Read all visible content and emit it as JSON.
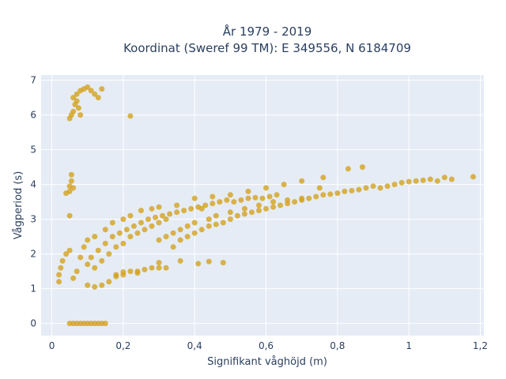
{
  "chart_data": {
    "type": "scatter",
    "title_lines": [
      "År 1979 - 2019",
      "Koordinat (Sweref 99 TM): E 349556, N 6184709"
    ],
    "xlabel": "Signifikant våghöjd (m)",
    "ylabel": "Vågperiod (s)",
    "xlim": [
      -0.03,
      1.21
    ],
    "ylim": [
      -0.35,
      7.15
    ],
    "x_ticks": [
      0,
      0.2,
      0.4,
      0.6,
      0.8,
      1.0,
      1.2
    ],
    "x_tick_labels": [
      "0",
      "0,2",
      "0,4",
      "0,6",
      "0,8",
      "1",
      "1,2"
    ],
    "y_ticks": [
      0,
      1,
      2,
      3,
      4,
      5,
      6,
      7
    ],
    "y_tick_labels": [
      "0",
      "1",
      "2",
      "3",
      "4",
      "5",
      "6",
      "7"
    ],
    "grid": true,
    "marker_color": "#D4A21E",
    "plot_background": "#E5ECF6",
    "series": [
      {
        "points": [
          [
            0.05,
            5.9
          ],
          [
            0.055,
            6.0
          ],
          [
            0.06,
            6.1
          ],
          [
            0.065,
            6.3
          ],
          [
            0.07,
            6.4
          ],
          [
            0.075,
            6.2
          ],
          [
            0.08,
            6.0
          ],
          [
            0.06,
            6.5
          ],
          [
            0.07,
            6.6
          ],
          [
            0.08,
            6.7
          ],
          [
            0.09,
            6.75
          ],
          [
            0.1,
            6.8
          ],
          [
            0.11,
            6.7
          ],
          [
            0.12,
            6.6
          ],
          [
            0.13,
            6.5
          ],
          [
            0.14,
            6.75
          ],
          [
            0.22,
            5.97
          ],
          [
            0.05,
            3.8
          ],
          [
            0.05,
            3.95
          ],
          [
            0.055,
            4.1
          ],
          [
            0.055,
            4.28
          ],
          [
            0.05,
            3.1
          ],
          [
            0.06,
            3.9
          ],
          [
            0.04,
            3.75
          ],
          [
            0.05,
            0.0
          ],
          [
            0.06,
            0.0
          ],
          [
            0.07,
            0.0
          ],
          [
            0.08,
            0.0
          ],
          [
            0.09,
            0.0
          ],
          [
            0.1,
            0.0
          ],
          [
            0.11,
            0.0
          ],
          [
            0.12,
            0.0
          ],
          [
            0.13,
            0.0
          ],
          [
            0.14,
            0.0
          ],
          [
            0.15,
            0.0
          ],
          [
            0.02,
            1.2
          ],
          [
            0.02,
            1.4
          ],
          [
            0.025,
            1.6
          ],
          [
            0.03,
            1.8
          ],
          [
            0.04,
            2.0
          ],
          [
            0.05,
            2.1
          ],
          [
            0.06,
            1.3
          ],
          [
            0.07,
            1.5
          ],
          [
            0.08,
            1.9
          ],
          [
            0.09,
            2.2
          ],
          [
            0.1,
            1.1
          ],
          [
            0.1,
            2.4
          ],
          [
            0.12,
            1.05
          ],
          [
            0.12,
            2.5
          ],
          [
            0.14,
            1.1
          ],
          [
            0.15,
            2.7
          ],
          [
            0.16,
            1.2
          ],
          [
            0.17,
            2.9
          ],
          [
            0.18,
            1.35
          ],
          [
            0.2,
            3.0
          ],
          [
            0.2,
            1.4
          ],
          [
            0.22,
            1.5
          ],
          [
            0.22,
            3.1
          ],
          [
            0.24,
            1.5
          ],
          [
            0.25,
            3.25
          ],
          [
            0.26,
            1.55
          ],
          [
            0.28,
            1.6
          ],
          [
            0.28,
            3.3
          ],
          [
            0.3,
            1.6
          ],
          [
            0.3,
            3.35
          ],
          [
            0.32,
            1.6
          ],
          [
            0.12,
            1.6
          ],
          [
            0.14,
            1.8
          ],
          [
            0.16,
            2.0
          ],
          [
            0.18,
            2.2
          ],
          [
            0.2,
            2.3
          ],
          [
            0.22,
            2.5
          ],
          [
            0.24,
            2.6
          ],
          [
            0.26,
            2.7
          ],
          [
            0.28,
            2.8
          ],
          [
            0.3,
            2.9
          ],
          [
            0.32,
            3.0
          ],
          [
            0.34,
            2.2
          ],
          [
            0.35,
            3.4
          ],
          [
            0.36,
            2.4
          ],
          [
            0.38,
            2.5
          ],
          [
            0.4,
            2.6
          ],
          [
            0.4,
            3.6
          ],
          [
            0.42,
            2.7
          ],
          [
            0.42,
            3.3
          ],
          [
            0.44,
            2.8
          ],
          [
            0.45,
            3.65
          ],
          [
            0.46,
            2.85
          ],
          [
            0.48,
            2.9
          ],
          [
            0.5,
            3.0
          ],
          [
            0.5,
            3.7
          ],
          [
            0.52,
            3.1
          ],
          [
            0.54,
            3.15
          ],
          [
            0.55,
            3.8
          ],
          [
            0.56,
            3.2
          ],
          [
            0.58,
            3.25
          ],
          [
            0.6,
            3.3
          ],
          [
            0.6,
            3.9
          ],
          [
            0.62,
            3.35
          ],
          [
            0.64,
            3.4
          ],
          [
            0.65,
            4.0
          ],
          [
            0.66,
            3.45
          ],
          [
            0.68,
            3.5
          ],
          [
            0.7,
            3.55
          ],
          [
            0.7,
            4.1
          ],
          [
            0.72,
            3.6
          ],
          [
            0.74,
            3.65
          ],
          [
            0.75,
            3.9
          ],
          [
            0.76,
            3.7
          ],
          [
            0.78,
            3.72
          ],
          [
            0.8,
            3.75
          ],
          [
            0.82,
            3.8
          ],
          [
            0.84,
            3.82
          ],
          [
            0.86,
            3.85
          ],
          [
            0.88,
            3.9
          ],
          [
            0.9,
            3.95
          ],
          [
            0.92,
            3.9
          ],
          [
            0.94,
            3.95
          ],
          [
            0.96,
            4.0
          ],
          [
            0.98,
            4.05
          ],
          [
            1.0,
            4.08
          ],
          [
            1.02,
            4.1
          ],
          [
            1.04,
            4.12
          ],
          [
            1.06,
            4.15
          ],
          [
            1.08,
            4.1
          ],
          [
            1.1,
            4.2
          ],
          [
            1.12,
            4.15
          ],
          [
            1.18,
            4.22
          ],
          [
            0.83,
            4.45
          ],
          [
            0.87,
            4.5
          ],
          [
            0.76,
            4.2
          ],
          [
            0.3,
            1.75
          ],
          [
            0.36,
            1.8
          ],
          [
            0.41,
            1.72
          ],
          [
            0.44,
            1.78
          ],
          [
            0.48,
            1.75
          ],
          [
            0.24,
            1.45
          ],
          [
            0.2,
            1.48
          ],
          [
            0.18,
            1.4
          ],
          [
            0.1,
            1.7
          ],
          [
            0.11,
            1.9
          ],
          [
            0.13,
            2.1
          ],
          [
            0.15,
            2.3
          ],
          [
            0.17,
            2.5
          ],
          [
            0.19,
            2.6
          ],
          [
            0.21,
            2.7
          ],
          [
            0.23,
            2.8
          ],
          [
            0.25,
            2.9
          ],
          [
            0.27,
            3.0
          ],
          [
            0.29,
            3.05
          ],
          [
            0.31,
            3.1
          ],
          [
            0.33,
            3.15
          ],
          [
            0.35,
            3.2
          ],
          [
            0.37,
            3.25
          ],
          [
            0.39,
            3.3
          ],
          [
            0.41,
            3.35
          ],
          [
            0.43,
            3.4
          ],
          [
            0.45,
            3.45
          ],
          [
            0.47,
            3.5
          ],
          [
            0.49,
            3.55
          ],
          [
            0.51,
            3.5
          ],
          [
            0.53,
            3.55
          ],
          [
            0.55,
            3.6
          ],
          [
            0.57,
            3.62
          ],
          [
            0.59,
            3.6
          ],
          [
            0.61,
            3.65
          ],
          [
            0.63,
            3.7
          ],
          [
            0.3,
            2.4
          ],
          [
            0.32,
            2.5
          ],
          [
            0.34,
            2.6
          ],
          [
            0.36,
            2.7
          ],
          [
            0.38,
            2.8
          ],
          [
            0.4,
            2.9
          ],
          [
            0.44,
            3.0
          ],
          [
            0.46,
            3.1
          ],
          [
            0.5,
            3.2
          ],
          [
            0.54,
            3.3
          ],
          [
            0.58,
            3.4
          ],
          [
            0.62,
            3.5
          ],
          [
            0.66,
            3.55
          ],
          [
            0.7,
            3.6
          ]
        ]
      }
    ]
  }
}
